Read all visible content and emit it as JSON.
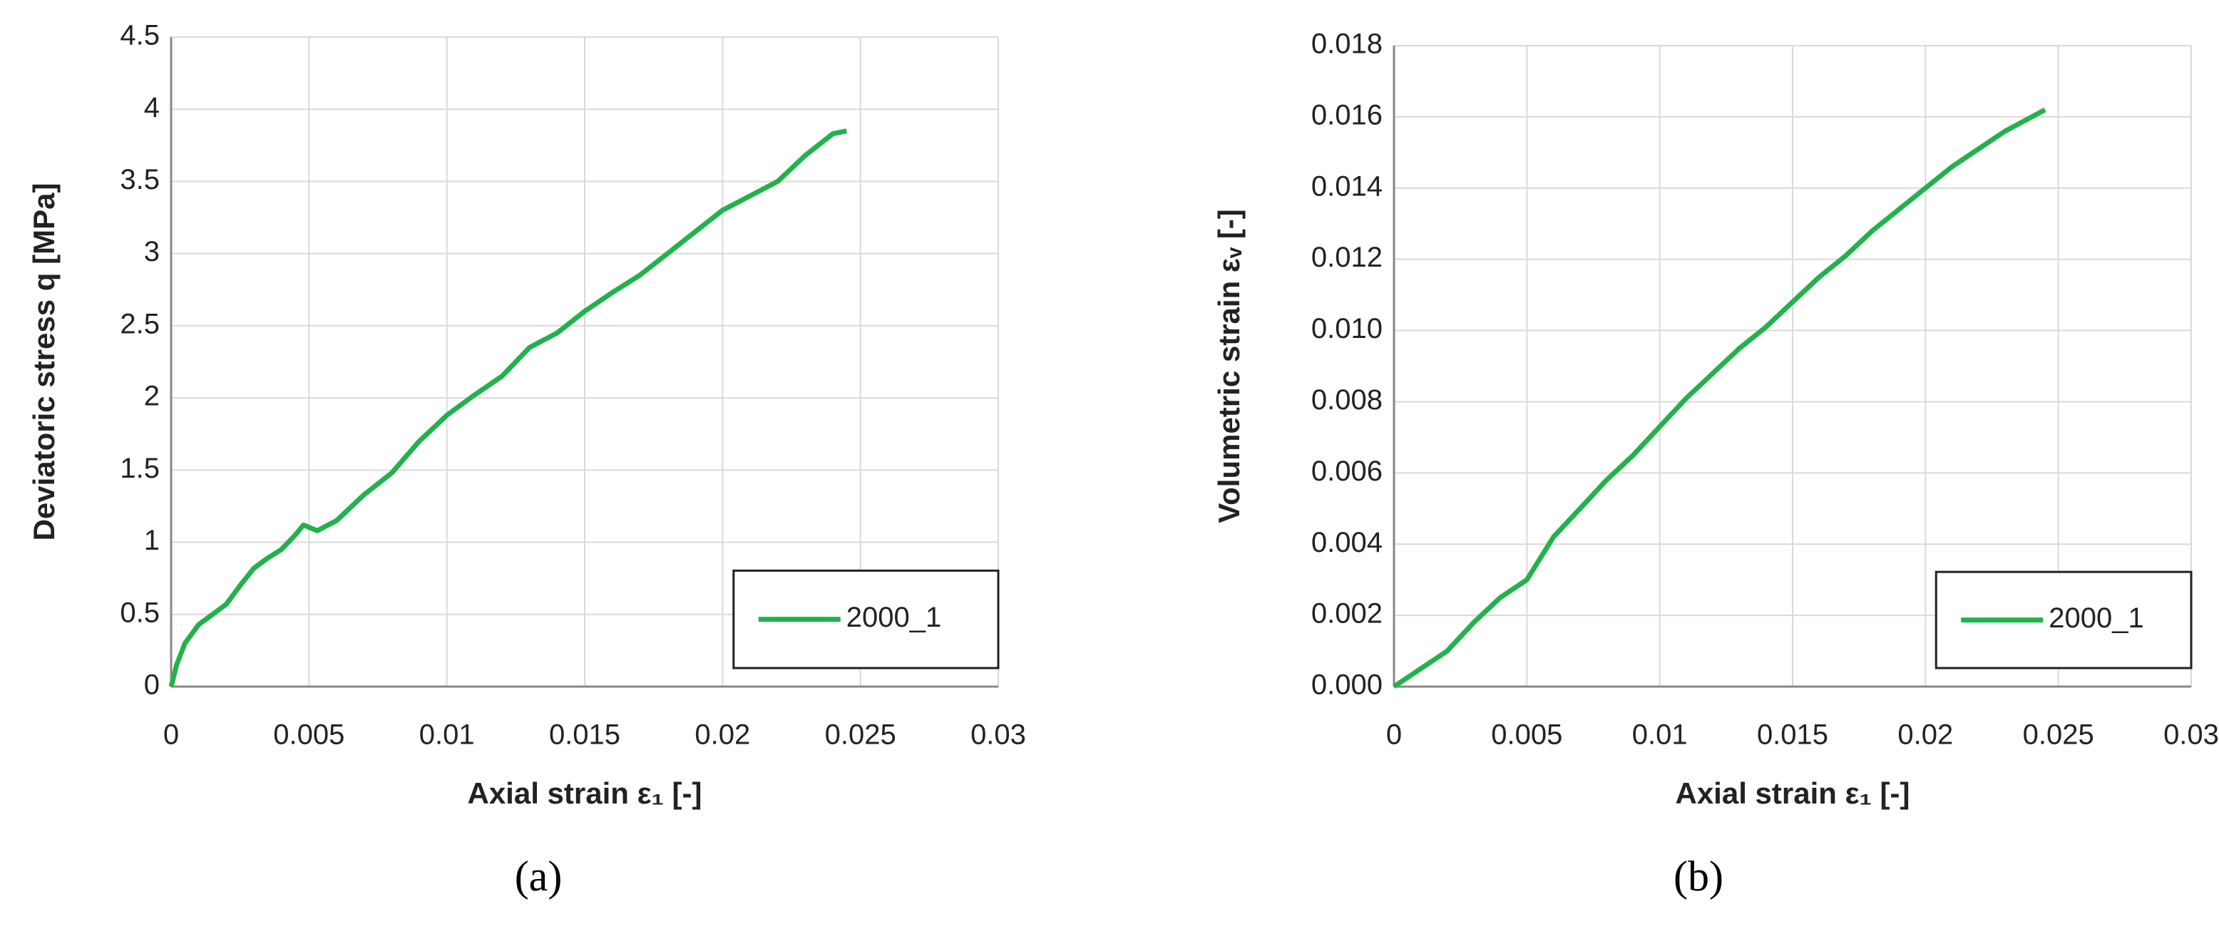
{
  "chart_data": [
    {
      "type": "line",
      "caption": "(a)",
      "xlabel": "Axial strain ε₁ [-]",
      "ylabel": "Deviatoric stress q [MPa]",
      "xlim": [
        0,
        0.03
      ],
      "xticks": [
        0,
        0.005,
        0.01,
        0.015,
        0.02,
        0.025,
        0.03
      ],
      "ylim": [
        0,
        4.5
      ],
      "yticks": [
        0,
        0.5,
        1,
        1.5,
        2,
        2.5,
        3,
        3.5,
        4,
        4.5
      ],
      "grid": true,
      "legend": "lower right",
      "x": [
        0,
        0.0002,
        0.0005,
        0.001,
        0.0015,
        0.002,
        0.0025,
        0.003,
        0.0035,
        0.004,
        0.0045,
        0.0048,
        0.0053,
        0.006,
        0.007,
        0.008,
        0.009,
        0.01,
        0.011,
        0.012,
        0.013,
        0.014,
        0.015,
        0.016,
        0.017,
        0.018,
        0.019,
        0.02,
        0.021,
        0.022,
        0.023,
        0.024,
        0.0245
      ],
      "series": [
        {
          "name": "2000_1",
          "color": "#22b24c",
          "values": [
            0,
            0.15,
            0.3,
            0.43,
            0.5,
            0.57,
            0.7,
            0.82,
            0.89,
            0.95,
            1.05,
            1.12,
            1.08,
            1.15,
            1.33,
            1.48,
            1.7,
            1.88,
            2.02,
            2.15,
            2.35,
            2.45,
            2.6,
            2.73,
            2.85,
            3.0,
            3.15,
            3.3,
            3.4,
            3.5,
            3.68,
            3.83,
            3.85
          ]
        }
      ]
    },
    {
      "type": "line",
      "caption": "(b)",
      "xlabel": "Axial strain ε₁ [-]",
      "ylabel": "Volumetric strain εᵥ [-]",
      "xlim": [
        0,
        0.03
      ],
      "xticks": [
        0,
        0.005,
        0.01,
        0.015,
        0.02,
        0.025,
        0.03
      ],
      "ylim": [
        0,
        0.018
      ],
      "yticks": [
        {
          "value": 0,
          "label": "0.000"
        },
        0.002,
        0.004,
        0.006,
        0.008,
        {
          "value": 0.01,
          "label": "0.010"
        },
        0.012,
        0.014,
        0.016,
        0.018
      ],
      "grid": true,
      "legend": "lower right",
      "x": [
        0,
        0.001,
        0.002,
        0.003,
        0.004,
        0.005,
        0.006,
        0.007,
        0.008,
        0.009,
        0.01,
        0.011,
        0.012,
        0.013,
        0.014,
        0.015,
        0.016,
        0.017,
        0.018,
        0.019,
        0.02,
        0.021,
        0.022,
        0.023,
        0.024,
        0.0245
      ],
      "series": [
        {
          "name": "2000_1",
          "color": "#22b24c",
          "values": [
            0,
            0.0005,
            0.001,
            0.0018,
            0.0025,
            0.003,
            0.0042,
            0.005,
            0.0058,
            0.0065,
            0.0073,
            0.0081,
            0.0088,
            0.0095,
            0.0101,
            0.0108,
            0.0115,
            0.0121,
            0.0128,
            0.0134,
            0.014,
            0.0146,
            0.0151,
            0.0156,
            0.016,
            0.0162
          ]
        }
      ]
    }
  ]
}
